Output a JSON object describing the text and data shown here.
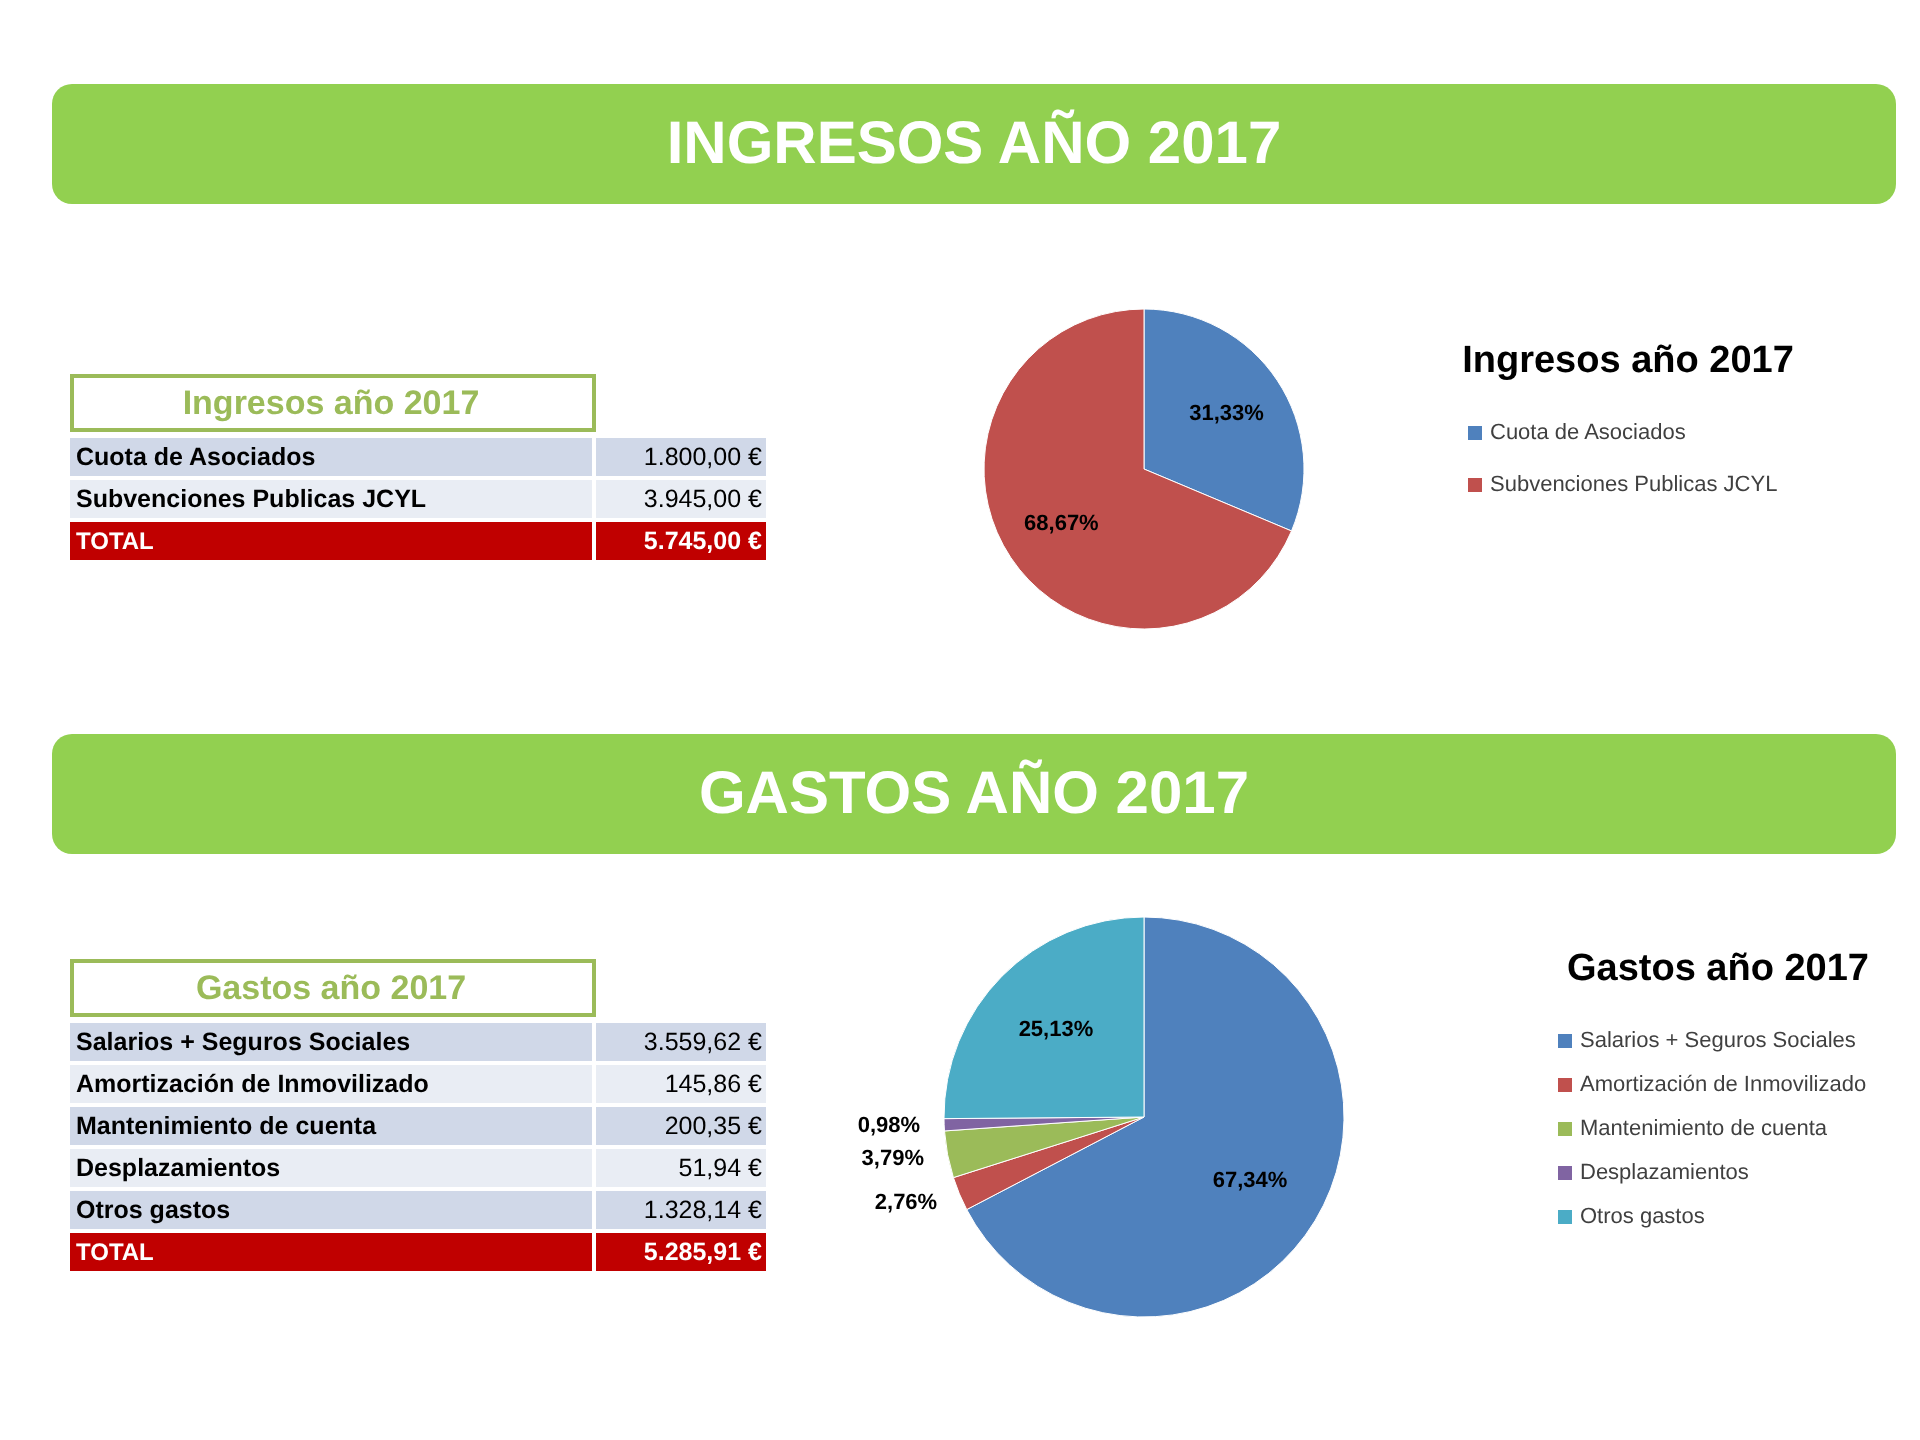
{
  "chart_data": [
    {
      "type": "other",
      "title": "INGRESOS AÑO 2017",
      "subtitle": "Ingresos año 2017",
      "annotations": [
        "Cuota de Asociados",
        "1.800,00 €",
        "Subvenciones Publicas JCYL",
        "3.945,00 €",
        "TOTAL",
        "5.745,00 €"
      ]
    },
    {
      "type": "pie",
      "title": "Ingresos año 2017",
      "categories": [
        "Cuota de Asociados",
        "Subvenciones Publicas JCYL"
      ],
      "values": [
        31.33,
        68.67
      ],
      "colors": [
        "#4f81bd",
        "#c0504d"
      ],
      "value_labels": [
        "31,33%",
        "68,67%"
      ],
      "legend": "right"
    },
    {
      "type": "other",
      "title": "GASTOS AÑO 2017",
      "subtitle": "Gastos año 2017",
      "annotations": [
        "Salarios + Seguros Sociales",
        "3.559,62 €",
        "Amortización de Inmovilizado",
        "145,86 €",
        "Mantenimiento de cuenta",
        "200,35 €",
        "Desplazamientos",
        "51,94 €",
        "Otros gastos",
        "1.328,14 €",
        "TOTAL",
        "5.285,91 €"
      ]
    },
    {
      "type": "pie",
      "title": "Gastos año 2017",
      "categories": [
        "Salarios + Seguros Sociales",
        "Amortización de Inmovilizado",
        "Mantenimiento de cuenta",
        "Desplazamientos",
        "Otros gastos"
      ],
      "values": [
        67.34,
        2.76,
        3.79,
        0.98,
        25.13
      ],
      "colors": [
        "#4f81bd",
        "#c0504d",
        "#9bbb59",
        "#8064a2",
        "#4bacc6"
      ],
      "value_labels": [
        "67,34%",
        "2,76%",
        "3,79%",
        "0,98%",
        "25,13%"
      ],
      "legend": "right"
    }
  ]
}
